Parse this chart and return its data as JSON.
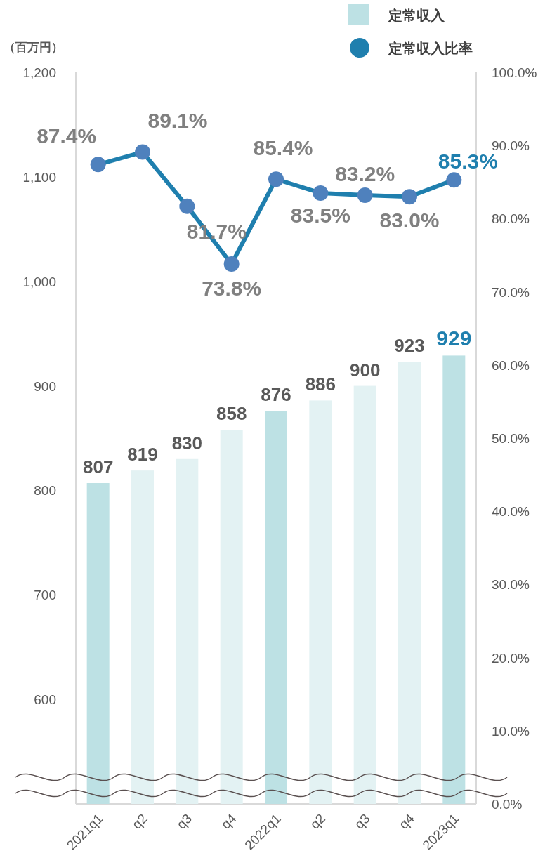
{
  "chart_data": {
    "type": "bar",
    "ylabel": "（百万円）",
    "categories": [
      "2021q1",
      "q2",
      "q3",
      "q4",
      "2022q1",
      "q2",
      "q3",
      "q4",
      "2023q1"
    ],
    "ylim": [
      500,
      1200
    ],
    "yticks": [
      {
        "value": 600,
        "label": "600"
      },
      {
        "value": 700,
        "label": "700"
      },
      {
        "value": 800,
        "label": "800"
      },
      {
        "value": 900,
        "label": "900"
      },
      {
        "value": 1000,
        "label": "1,000"
      },
      {
        "value": 1100,
        "label": "1,100"
      },
      {
        "value": 1200,
        "label": "1,200"
      }
    ],
    "y2lim": [
      0,
      100
    ],
    "y2ticks": [
      {
        "value": 0,
        "label": "0.0%"
      },
      {
        "value": 10,
        "label": "10.0%"
      },
      {
        "value": 20,
        "label": "20.0%"
      },
      {
        "value": 30,
        "label": "30.0%"
      },
      {
        "value": 40,
        "label": "40.0%"
      },
      {
        "value": 50,
        "label": "50.0%"
      },
      {
        "value": 60,
        "label": "60.0%"
      },
      {
        "value": 70,
        "label": "70.0%"
      },
      {
        "value": 80,
        "label": "80.0%"
      },
      {
        "value": 90,
        "label": "90.0%"
      },
      {
        "value": 100,
        "label": "100.0%"
      }
    ],
    "series": [
      {
        "name": "定常収入",
        "color": "#bde1e4",
        "colors": [
          "#bde1e4",
          "#e3f2f3",
          "#e3f2f3",
          "#e3f2f3",
          "#bde1e4",
          "#e3f2f3",
          "#e3f2f3",
          "#e3f2f3",
          "#bde1e4"
        ],
        "values": [
          807,
          819,
          830,
          858,
          876,
          886,
          900,
          923,
          929
        ],
        "data_labels": true
      },
      {
        "name": "定常収入比率",
        "type": "line",
        "axis": "y2",
        "color": "#1f7fae",
        "marker": "circle",
        "values": [
          87.4,
          89.1,
          81.7,
          73.8,
          85.4,
          83.5,
          83.2,
          83.0,
          85.3
        ],
        "value_labels": [
          "87.4%",
          "89.1%",
          "81.7%",
          "73.8%",
          "85.4%",
          "83.5%",
          "83.2%",
          "83.0%",
          "85.3%"
        ]
      }
    ],
    "legend": "top right",
    "grid": false
  }
}
